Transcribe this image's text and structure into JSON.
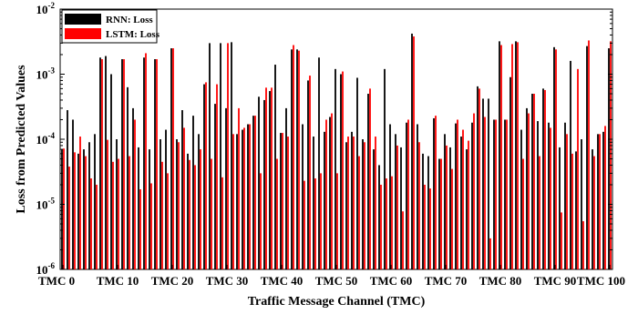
{
  "chart_data": {
    "type": "bar",
    "xlabel": "Traffic Message Channel (TMC)",
    "ylabel": "Loss from Predicted Values",
    "yscale": "log",
    "ylim": [
      1e-06,
      0.01
    ],
    "ytick_labels": [
      {
        "base": "10",
        "exp": "-6"
      },
      {
        "base": "10",
        "exp": "-5"
      },
      {
        "base": "10",
        "exp": "-4"
      },
      {
        "base": "10",
        "exp": "-3"
      },
      {
        "base": "10",
        "exp": "-2"
      }
    ],
    "xtick_labels": [
      "TMC 0",
      "TMC 10",
      "TMC 20",
      "TMC 30",
      "TMC 40",
      "TMC 50",
      "TMC 60",
      "TMC 70",
      "TMC 80",
      "TMC 90",
      "TMC 100"
    ],
    "xtick_indices": [
      0,
      10,
      20,
      30,
      40,
      50,
      60,
      70,
      80,
      90,
      100
    ],
    "categories_count": 101,
    "legend": {
      "position": "top-left"
    },
    "series": [
      {
        "name": "RNN: Loss",
        "color": "#000000",
        "values": [
          7e-05,
          0.00028,
          0.0002,
          6e-05,
          7e-05,
          9e-05,
          0.00012,
          0.0018,
          0.0019,
          0.001,
          0.0001,
          0.0017,
          0.00063,
          0.0003,
          7.5e-05,
          0.0018,
          7e-05,
          0.0017,
          0.0001,
          0.00014,
          0.0025,
          0.0001,
          0.00028,
          6e-05,
          0.00023,
          0.00012,
          0.0007,
          0.003,
          0.00035,
          0.003,
          0.0003,
          0.0031,
          0.00012,
          0.00014,
          0.00017,
          0.00023,
          0.00045,
          0.0004,
          0.00055,
          0.0014,
          0.000125,
          0.0003,
          0.0024,
          0.0024,
          0.00017,
          0.0008,
          0.00011,
          0.0018,
          0.00013,
          0.00022,
          0.0012,
          0.001,
          9e-05,
          0.00013,
          0.00088,
          0.0001,
          0.0005,
          7e-05,
          4e-05,
          0.0012,
          0.00017,
          0.00012,
          7.5e-05,
          0.00018,
          0.0042,
          0.00017,
          6e-05,
          5.5e-05,
          0.00021,
          5e-05,
          0.00012,
          7.5e-05,
          0.000175,
          0.00011,
          7e-05,
          0.00018,
          0.00065,
          0.00042,
          0.00042,
          0.0002,
          0.0032,
          0.0002,
          0.0009,
          0.0032,
          0.00014,
          0.0003,
          0.0005,
          0.00019,
          0.0006,
          0.00018,
          0.0026,
          7.5e-05,
          0.00018,
          0.0016,
          6.5e-05,
          0.0001,
          0.0027,
          7e-05,
          0.00012,
          0.00013,
          0.0025
        ],
        "label_values": []
      },
      {
        "name": "LSTM: Loss",
        "color": "#ff0000",
        "values": [
          7.2e-05,
          3.8e-05,
          6.3e-05,
          0.00011,
          5.5e-05,
          2.5e-05,
          2e-05,
          0.0017,
          9.8e-05,
          4.5e-05,
          5e-05,
          0.0017,
          5.5e-05,
          0.0002,
          1.7e-05,
          0.0021,
          2.1e-05,
          0.0017,
          4.5e-05,
          3e-05,
          0.0025,
          9e-05,
          0.00015,
          4.8e-05,
          4e-05,
          7e-05,
          0.00075,
          5e-05,
          0.0007,
          2.6e-05,
          0.003,
          0.00012,
          0.0003,
          0.00015,
          0.00017,
          0.00023,
          3e-05,
          0.00062,
          0.00062,
          5e-05,
          0.000125,
          0.00011,
          0.0028,
          0.0023,
          2.3e-05,
          0.00095,
          2.5e-05,
          3e-05,
          0.0002,
          0.00025,
          3e-05,
          0.0011,
          0.00011,
          0.00011,
          5.5e-05,
          9e-05,
          0.0006,
          0.00011,
          2e-05,
          2.5e-05,
          2.7e-05,
          8e-05,
          7.8e-06,
          0.0002,
          0.0038,
          9e-05,
          2e-05,
          1.75e-05,
          0.00023,
          5e-05,
          8e-05,
          3.5e-05,
          0.0002,
          0.00014,
          9.5e-05,
          0.00025,
          0.0006,
          0.00022,
          3e-06,
          0.0002,
          0.0028,
          0.0002,
          0.0029,
          0.0031,
          5e-05,
          0.00025,
          0.0005,
          5.5e-05,
          0.00057,
          0.00015,
          0.0024,
          7.5e-06,
          0.00012,
          6e-05,
          0.0012,
          5.5e-06,
          0.0033,
          5.5e-05,
          0.00012,
          0.00016,
          0.0032
        ],
        "label_values": []
      }
    ]
  }
}
